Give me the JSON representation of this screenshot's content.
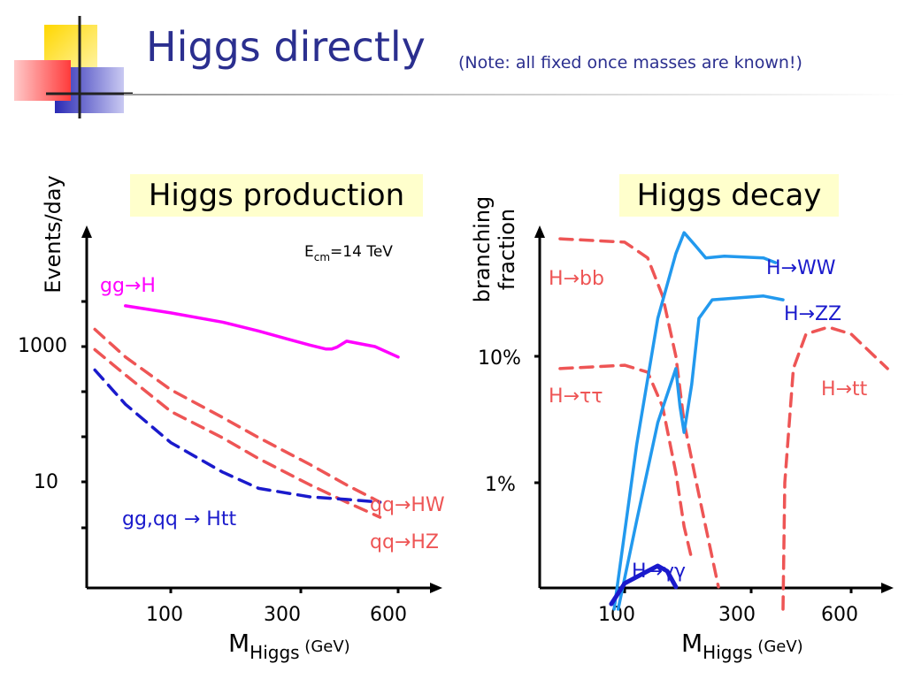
{
  "slide": {
    "title": "Higgs directly",
    "subtitle": "(Note: all fixed once masses are known!)",
    "colors": {
      "title": "#2b2f8f",
      "box_bg": "#ffffcc"
    }
  },
  "chart_data": [
    {
      "type": "line",
      "title": "Higgs production",
      "annotation": "E_cm=14 TeV",
      "xlabel": "M_Higgs (GeV)",
      "ylabel": "Events/day",
      "xscale": "log",
      "yscale": "log",
      "xticks": [
        "100",
        "300",
        "600"
      ],
      "yticks": [
        "1000",
        "10"
      ],
      "series": [
        {
          "name": "gg→H",
          "color": "#ff00ff",
          "style": "solid",
          "x": [
            70,
            100,
            150,
            200,
            250,
            300,
            340,
            355,
            370,
            400,
            500,
            600
          ],
          "y": [
            4000,
            3150,
            2300,
            1700,
            1300,
            1050,
            920,
            920,
            980,
            1200,
            1000,
            700
          ]
        },
        {
          "name": "qq→HW",
          "color": "#ee5555",
          "style": "dashed",
          "x": [
            55,
            70,
            100,
            150,
            200,
            300,
            400,
            520
          ],
          "y": [
            1800,
            700,
            230,
            90,
            45,
            18,
            9,
            5
          ]
        },
        {
          "name": "qq→HZ",
          "color": "#ee5555",
          "style": "dashed",
          "x": [
            55,
            70,
            100,
            150,
            200,
            300,
            400,
            520
          ],
          "y": [
            900,
            380,
            110,
            45,
            22,
            9,
            5,
            3
          ]
        },
        {
          "name": "gg,qq → Htt",
          "color": "#1a1acc",
          "style": "dashed",
          "x": [
            55,
            70,
            100,
            150,
            200,
            300,
            400,
            520
          ],
          "y": [
            450,
            140,
            38,
            14,
            8,
            6,
            5.5,
            5
          ]
        }
      ]
    },
    {
      "type": "line",
      "title": "Higgs decay",
      "xlabel": "M_Higgs (GeV)",
      "ylabel": "branching fraction",
      "xscale": "log",
      "yscale": "log",
      "xticks": [
        "100",
        "300",
        "600"
      ],
      "yticks": [
        "10%",
        "1%"
      ],
      "series": [
        {
          "name": "H→bb",
          "color": "#ee5555",
          "style": "dashed",
          "x": [
            60,
            100,
            120,
            135,
            150,
            160,
            180,
            210
          ],
          "y": [
            0.85,
            0.8,
            0.6,
            0.3,
            0.1,
            0.03,
            0.008,
            0.0015
          ]
        },
        {
          "name": "H→ττ",
          "color": "#ee5555",
          "style": "dashed",
          "x": [
            60,
            100,
            120,
            135,
            150,
            160,
            170
          ],
          "y": [
            0.08,
            0.085,
            0.075,
            0.04,
            0.012,
            0.0045,
            0.0025
          ]
        },
        {
          "name": "H→WW",
          "color": "#2299ee",
          "style": "solid",
          "x": [
            92,
            110,
            130,
            150,
            160,
            175,
            190,
            220,
            300,
            330
          ],
          "y": [
            0.001,
            0.02,
            0.2,
            0.65,
            0.95,
            0.75,
            0.6,
            0.62,
            0.6,
            0.55
          ]
        },
        {
          "name": "H→ZZ",
          "color": "#2299ee",
          "style": "solid",
          "x": [
            95,
            110,
            130,
            150,
            155,
            160,
            170,
            180,
            200,
            300,
            350
          ],
          "y": [
            0.001,
            0.005,
            0.03,
            0.08,
            0.04,
            0.025,
            0.06,
            0.2,
            0.28,
            0.3,
            0.28
          ]
        },
        {
          "name": "H→tt",
          "color": "#ee5555",
          "style": "dashed",
          "x": [
            350,
            355,
            380,
            420,
            500,
            600,
            800
          ],
          "y": [
            0.001,
            0.01,
            0.08,
            0.15,
            0.17,
            0.15,
            0.08
          ]
        },
        {
          "name": "H→γγ",
          "color": "#1a1acc",
          "style": "solid-thick",
          "x": [
            90,
            100,
            120,
            130,
            140,
            150
          ],
          "y": [
            0.0011,
            0.0016,
            0.002,
            0.0022,
            0.002,
            0.0015
          ]
        }
      ]
    }
  ]
}
